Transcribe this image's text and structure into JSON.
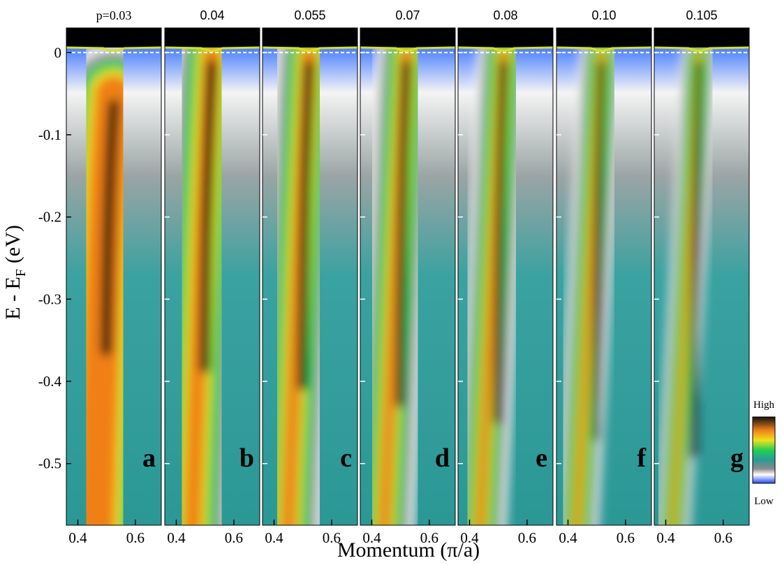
{
  "chart_data": {
    "type": "arpes",
    "ylabel": "E - E",
    "ylabel_subscript": "F",
    "ylabel_unit": "(eV)",
    "xlabel": "Momentum  (π/a)",
    "panels": [
      {
        "title": "p=0.03",
        "label": "a"
      },
      {
        "title": "0.04",
        "label": "b"
      },
      {
        "title": "0.055",
        "label": "c"
      },
      {
        "title": "0.07",
        "label": "d"
      },
      {
        "title": "0.08",
        "label": "e"
      },
      {
        "title": "0.10",
        "label": "f"
      },
      {
        "title": "0.105",
        "label": "g"
      }
    ],
    "xlim": [
      0.36,
      0.69
    ],
    "xticks": [
      0.4,
      0.6
    ],
    "ylim": [
      -0.575,
      0.03
    ],
    "yticks": [
      0,
      -0.1,
      -0.2,
      -0.3,
      -0.4,
      -0.5
    ],
    "colorbar": {
      "high": "High",
      "low": "Low"
    }
  }
}
